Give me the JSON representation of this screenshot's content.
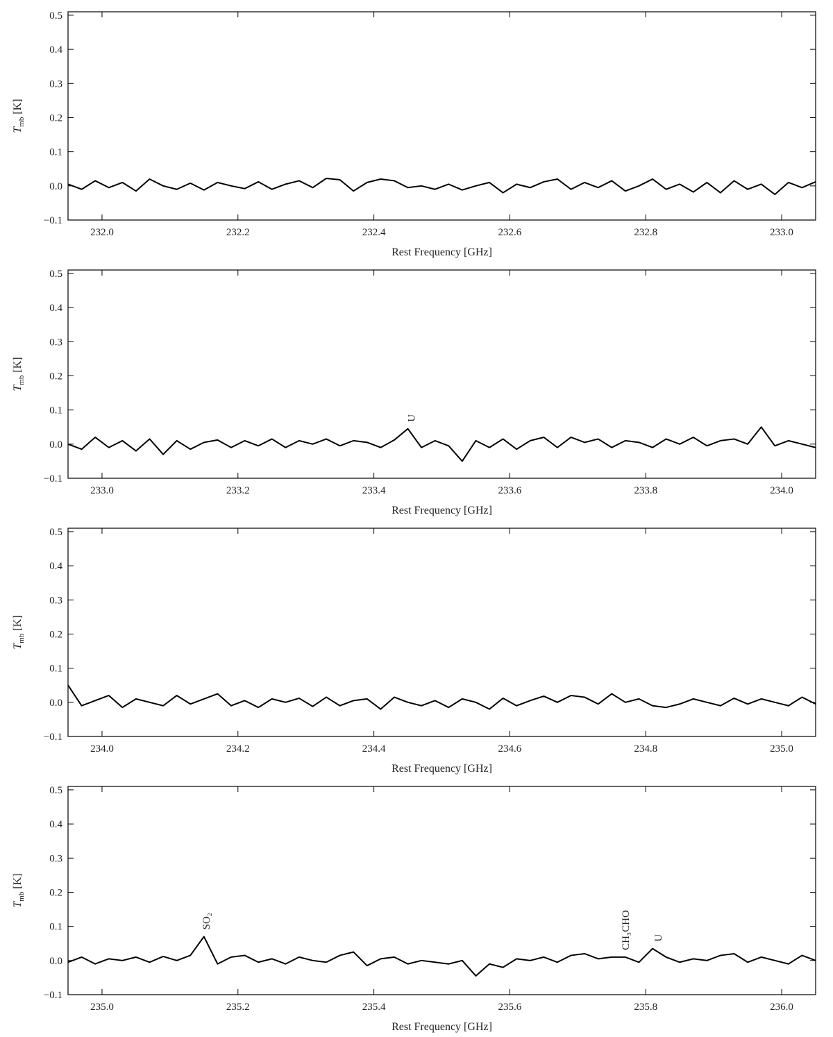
{
  "chart_data": [
    {
      "type": "line",
      "xlabel": "Rest Frequency [GHz]",
      "ylabel": "T",
      "ylabel_sub": "mb",
      "ylabel_unit": "[K]",
      "xlim": [
        231.95,
        233.05
      ],
      "ylim": [
        -0.1,
        0.51
      ],
      "xticks": [
        {
          "value": 232,
          "label": "232.0"
        },
        232.2,
        232.4,
        232.6,
        232.8,
        {
          "value": 233,
          "label": "233.0"
        }
      ],
      "yticks": [
        {
          "value": -0.1,
          "label": "−0.1"
        },
        {
          "value": 0,
          "label": "0.0"
        },
        0.1,
        0.2,
        0.3,
        0.4,
        0.5
      ],
      "x": [
        231.95,
        231.97,
        231.99,
        232.01,
        232.03,
        232.05,
        232.07,
        232.09,
        232.11,
        232.13,
        232.15,
        232.17,
        232.19,
        232.21,
        232.23,
        232.25,
        232.27,
        232.29,
        232.31,
        232.33,
        232.35,
        232.37,
        232.39,
        232.41,
        232.43,
        232.45,
        232.47,
        232.49,
        232.51,
        232.53,
        232.55,
        232.57,
        232.59,
        232.61,
        232.63,
        232.65,
        232.67,
        232.69,
        232.71,
        232.73,
        232.75,
        232.77,
        232.79,
        232.81,
        232.83,
        232.85,
        232.87,
        232.89,
        232.91,
        232.93,
        232.95,
        232.97,
        232.99,
        233.01,
        233.03,
        233.05
      ],
      "series": [
        {
          "color": "#000000",
          "values": [
            0.005,
            -0.01,
            0.015,
            -0.005,
            0.01,
            -0.015,
            0.02,
            0.0,
            -0.01,
            0.008,
            -0.012,
            0.01,
            0.0,
            -0.008,
            0.012,
            -0.01,
            0.005,
            0.015,
            -0.005,
            0.022,
            0.018,
            -0.015,
            0.01,
            0.02,
            0.015,
            -0.005,
            0.0,
            -0.01,
            0.005,
            -0.012,
            0.0,
            0.01,
            -0.02,
            0.005,
            -0.005,
            0.012,
            0.02,
            -0.01,
            0.01,
            -0.005,
            0.015,
            -0.015,
            0.0,
            0.02,
            -0.01,
            0.005,
            -0.018,
            0.01,
            -0.02,
            0.015,
            -0.01,
            0.005,
            -0.025,
            0.01,
            -0.005,
            0.012
          ]
        }
      ],
      "annotations": []
    },
    {
      "type": "line",
      "xlabel": "Rest Frequency [GHz]",
      "ylabel": "T",
      "ylabel_sub": "mb",
      "ylabel_unit": "[K]",
      "xlim": [
        232.95,
        234.05
      ],
      "ylim": [
        -0.1,
        0.51
      ],
      "xticks": [
        {
          "value": 233,
          "label": "233.0"
        },
        233.2,
        233.4,
        233.6,
        233.8,
        {
          "value": 234,
          "label": "234.0"
        }
      ],
      "yticks": [
        {
          "value": -0.1,
          "label": "−0.1"
        },
        {
          "value": 0,
          "label": "0.0"
        },
        0.1,
        0.2,
        0.3,
        0.4,
        0.5
      ],
      "x": [
        232.95,
        232.97,
        232.99,
        233.01,
        233.03,
        233.05,
        233.07,
        233.09,
        233.11,
        233.13,
        233.15,
        233.17,
        233.19,
        233.21,
        233.23,
        233.25,
        233.27,
        233.29,
        233.31,
        233.33,
        233.35,
        233.37,
        233.39,
        233.41,
        233.43,
        233.45,
        233.47,
        233.49,
        233.51,
        233.53,
        233.55,
        233.57,
        233.59,
        233.61,
        233.63,
        233.65,
        233.67,
        233.69,
        233.71,
        233.73,
        233.75,
        233.77,
        233.79,
        233.81,
        233.83,
        233.85,
        233.87,
        233.89,
        233.91,
        233.93,
        233.95,
        233.97,
        233.99,
        234.01,
        234.03,
        234.05
      ],
      "series": [
        {
          "color": "#000000",
          "values": [
            0.0,
            -0.015,
            0.02,
            -0.01,
            0.01,
            -0.02,
            0.015,
            -0.03,
            0.01,
            -0.015,
            0.005,
            0.012,
            -0.01,
            0.01,
            -0.005,
            0.015,
            -0.01,
            0.01,
            0.0,
            0.015,
            -0.005,
            0.01,
            0.005,
            -0.01,
            0.012,
            0.045,
            -0.01,
            0.01,
            -0.005,
            -0.05,
            0.01,
            -0.01,
            0.015,
            -0.015,
            0.01,
            0.02,
            -0.01,
            0.02,
            0.005,
            0.015,
            -0.01,
            0.01,
            0.005,
            -0.01,
            0.015,
            0.0,
            0.02,
            -0.005,
            0.01,
            0.015,
            0.0,
            0.05,
            -0.005,
            0.01,
            0.0,
            -0.01
          ]
        }
      ],
      "annotations": [
        {
          "text": "U",
          "x": 233.455
        }
      ]
    },
    {
      "type": "line",
      "xlabel": "Rest Frequency [GHz]",
      "ylabel": "T",
      "ylabel_sub": "mb",
      "ylabel_unit": "[K]",
      "xlim": [
        233.95,
        235.05
      ],
      "ylim": [
        -0.1,
        0.51
      ],
      "xticks": [
        {
          "value": 234,
          "label": "234.0"
        },
        234.2,
        234.4,
        234.6,
        234.8,
        {
          "value": 235,
          "label": "235.0"
        }
      ],
      "yticks": [
        {
          "value": -0.1,
          "label": "−0.1"
        },
        {
          "value": 0,
          "label": "0.0"
        },
        0.1,
        0.2,
        0.3,
        0.4,
        0.5
      ],
      "x": [
        233.95,
        233.97,
        233.99,
        234.01,
        234.03,
        234.05,
        234.07,
        234.09,
        234.11,
        234.13,
        234.15,
        234.17,
        234.19,
        234.21,
        234.23,
        234.25,
        234.27,
        234.29,
        234.31,
        234.33,
        234.35,
        234.37,
        234.39,
        234.41,
        234.43,
        234.45,
        234.47,
        234.49,
        234.51,
        234.53,
        234.55,
        234.57,
        234.59,
        234.61,
        234.63,
        234.65,
        234.67,
        234.69,
        234.71,
        234.73,
        234.75,
        234.77,
        234.79,
        234.81,
        234.83,
        234.85,
        234.87,
        234.89,
        234.91,
        234.93,
        234.95,
        234.97,
        234.99,
        235.01,
        235.03,
        235.05
      ],
      "series": [
        {
          "color": "#000000",
          "values": [
            0.05,
            -0.01,
            0.005,
            0.02,
            -0.015,
            0.01,
            0.0,
            -0.01,
            0.02,
            -0.005,
            0.01,
            0.025,
            -0.01,
            0.005,
            -0.015,
            0.01,
            0.0,
            0.012,
            -0.012,
            0.015,
            -0.01,
            0.005,
            0.01,
            -0.02,
            0.015,
            0.0,
            -0.01,
            0.005,
            -0.015,
            0.01,
            0.0,
            -0.02,
            0.012,
            -0.01,
            0.005,
            0.018,
            0.0,
            0.02,
            0.015,
            -0.005,
            0.025,
            0.0,
            0.01,
            -0.01,
            -0.015,
            -0.005,
            0.01,
            0.0,
            -0.01,
            0.012,
            -0.005,
            0.01,
            0.0,
            -0.01,
            0.015,
            -0.005
          ]
        }
      ],
      "annotations": []
    },
    {
      "type": "line",
      "xlabel": "Rest Frequency [GHz]",
      "ylabel": "T",
      "ylabel_sub": "mb",
      "ylabel_unit": "[K]",
      "xlim": [
        234.95,
        236.05
      ],
      "ylim": [
        -0.1,
        0.51
      ],
      "xticks": [
        {
          "value": 235,
          "label": "235.0"
        },
        235.2,
        235.4,
        235.6,
        235.8,
        {
          "value": 236,
          "label": "236.0"
        }
      ],
      "yticks": [
        {
          "value": -0.1,
          "label": "−0.1"
        },
        {
          "value": 0,
          "label": "0.0"
        },
        0.1,
        0.2,
        0.3,
        0.4,
        0.5
      ],
      "x": [
        234.95,
        234.97,
        234.99,
        235.01,
        235.03,
        235.05,
        235.07,
        235.09,
        235.11,
        235.13,
        235.15,
        235.17,
        235.19,
        235.21,
        235.23,
        235.25,
        235.27,
        235.29,
        235.31,
        235.33,
        235.35,
        235.37,
        235.39,
        235.41,
        235.43,
        235.45,
        235.47,
        235.49,
        235.51,
        235.53,
        235.55,
        235.57,
        235.59,
        235.61,
        235.63,
        235.65,
        235.67,
        235.69,
        235.71,
        235.73,
        235.75,
        235.77,
        235.79,
        235.81,
        235.83,
        235.85,
        235.87,
        235.89,
        235.91,
        235.93,
        235.95,
        235.97,
        235.99,
        236.01,
        236.03,
        236.05
      ],
      "series": [
        {
          "color": "#000000",
          "values": [
            -0.005,
            0.01,
            -0.01,
            0.005,
            0.0,
            0.01,
            -0.005,
            0.012,
            0.0,
            0.015,
            0.07,
            -0.01,
            0.01,
            0.015,
            -0.005,
            0.005,
            -0.01,
            0.01,
            0.0,
            -0.005,
            0.015,
            0.025,
            -0.015,
            0.005,
            0.01,
            -0.01,
            0.0,
            -0.005,
            -0.01,
            0.0,
            -0.045,
            -0.01,
            -0.02,
            0.005,
            0.0,
            0.01,
            -0.005,
            0.015,
            0.02,
            0.005,
            0.01,
            0.01,
            -0.005,
            0.035,
            0.01,
            -0.005,
            0.005,
            0.0,
            0.015,
            0.02,
            -0.005,
            0.01,
            0.0,
            -0.01,
            0.015,
            0.0
          ]
        }
      ],
      "annotations": [
        {
          "text": "SO₂",
          "x": 235.153
        },
        {
          "text": "CH₃CHO",
          "x": 235.77
        },
        {
          "text": "U",
          "x": 235.818
        }
      ]
    }
  ]
}
